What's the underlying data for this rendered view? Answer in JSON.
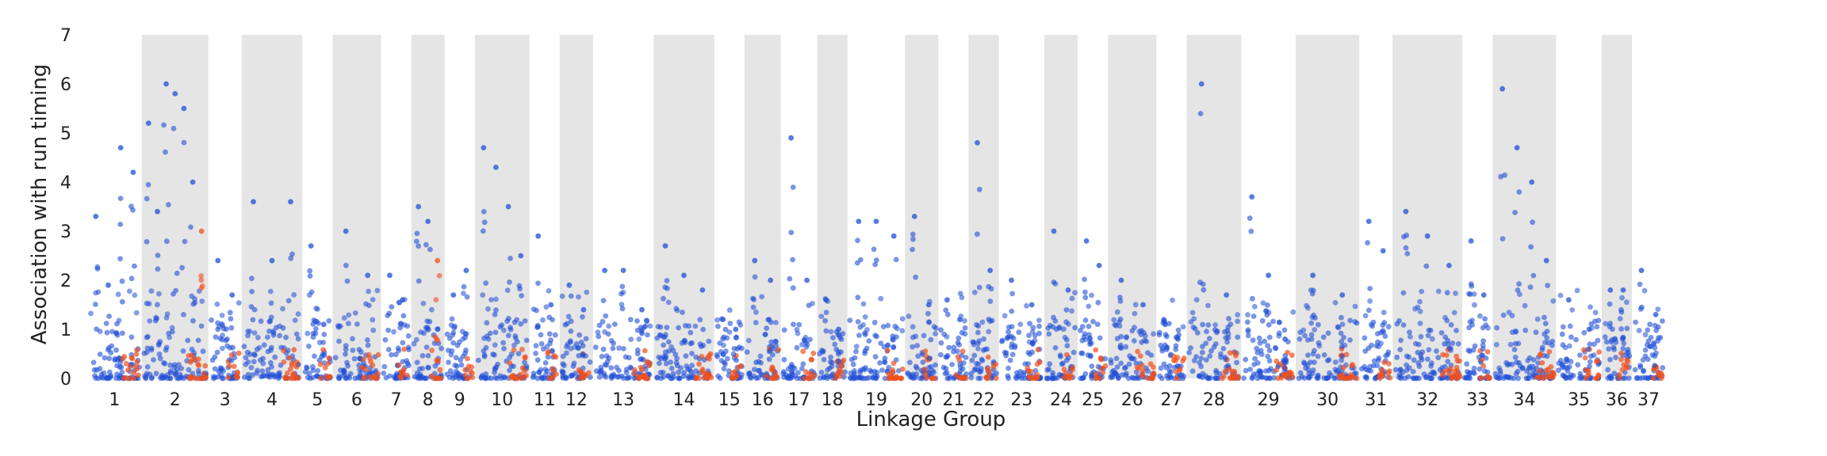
{
  "chart_data": {
    "type": "scatter",
    "title": "",
    "xlabel": "Linkage Group",
    "ylabel": "Association with run timing",
    "ylim": [
      0,
      7
    ],
    "yticks": [
      "0",
      "1",
      "2",
      "3",
      "4",
      "5",
      "6",
      "7"
    ],
    "grid": false,
    "legend": "none",
    "shading": "alternating grey bands behind even-numbered linkage groups",
    "colors": {
      "background": "#ffffff",
      "band": "#e5e5e5",
      "point_blue": "#1f4fd6",
      "point_red": "#f0501e",
      "text": "#222222"
    },
    "linkage_groups": [
      {
        "label": "1",
        "span": 1.8,
        "peaks": [
          3.3,
          1.9,
          4.7,
          4.2
        ]
      },
      {
        "label": "2",
        "span": 2.2,
        "peaks": [
          5.2,
          3.4,
          6.0,
          5.8,
          5.5,
          4.0,
          3.0
        ]
      },
      {
        "label": "3",
        "span": 1.1,
        "peaks": [
          2.4,
          1.7
        ]
      },
      {
        "label": "4",
        "span": 2.0,
        "peaks": [
          3.6,
          2.4,
          3.6
        ]
      },
      {
        "label": "5",
        "span": 1.0,
        "peaks": [
          2.7,
          1.1
        ]
      },
      {
        "label": "6",
        "span": 1.6,
        "peaks": [
          3.0,
          2.1
        ]
      },
      {
        "label": "7",
        "span": 1.0,
        "peaks": [
          2.1,
          1.6
        ]
      },
      {
        "label": "8",
        "span": 1.1,
        "peaks": [
          3.5,
          3.2,
          2.4
        ]
      },
      {
        "label": "9",
        "span": 1.0,
        "peaks": [
          1.7,
          2.2
        ]
      },
      {
        "label": "10",
        "span": 1.8,
        "peaks": [
          4.7,
          4.3,
          3.5,
          2.5
        ]
      },
      {
        "label": "11",
        "span": 1.0,
        "peaks": [
          2.9,
          1.5
        ]
      },
      {
        "label": "12",
        "span": 1.1,
        "peaks": [
          1.9,
          1.4
        ]
      },
      {
        "label": "13",
        "span": 2.0,
        "peaks": [
          2.2,
          2.2,
          1.4
        ]
      },
      {
        "label": "14",
        "span": 2.0,
        "peaks": [
          2.7,
          2.1,
          1.8
        ]
      },
      {
        "label": "15",
        "span": 1.0,
        "peaks": [
          1.2,
          1.0
        ]
      },
      {
        "label": "16",
        "span": 1.2,
        "peaks": [
          2.4,
          2.0
        ]
      },
      {
        "label": "17",
        "span": 1.2,
        "peaks": [
          4.9,
          2.0
        ]
      },
      {
        "label": "18",
        "span": 1.0,
        "peaks": [
          1.6,
          1.0
        ]
      },
      {
        "label": "19",
        "span": 1.9,
        "peaks": [
          3.2,
          3.2,
          2.9
        ]
      },
      {
        "label": "20",
        "span": 1.1,
        "peaks": [
          3.3,
          1.5
        ]
      },
      {
        "label": "21",
        "span": 1.0,
        "peaks": [
          1.6,
          1.2
        ]
      },
      {
        "label": "22",
        "span": 1.0,
        "peaks": [
          4.8,
          2.2
        ]
      },
      {
        "label": "23",
        "span": 1.5,
        "peaks": [
          2.0,
          1.5
        ]
      },
      {
        "label": "24",
        "span": 1.1,
        "peaks": [
          3.0,
          1.8
        ]
      },
      {
        "label": "25",
        "span": 1.0,
        "peaks": [
          2.8,
          2.3
        ]
      },
      {
        "label": "26",
        "span": 1.6,
        "peaks": [
          2.0,
          1.5
        ]
      },
      {
        "label": "27",
        "span": 1.0,
        "peaks": [
          1.1,
          0.8
        ]
      },
      {
        "label": "28",
        "span": 1.8,
        "peaks": [
          6.0,
          1.7
        ]
      },
      {
        "label": "29",
        "span": 1.8,
        "peaks": [
          3.7,
          2.1,
          0.8
        ]
      },
      {
        "label": "30",
        "span": 2.1,
        "peaks": [
          2.1,
          1.7
        ]
      },
      {
        "label": "31",
        "span": 1.1,
        "peaks": [
          3.2,
          2.6
        ]
      },
      {
        "label": "32",
        "span": 2.3,
        "peaks": [
          3.4,
          2.9,
          2.3
        ]
      },
      {
        "label": "33",
        "span": 1.0,
        "peaks": [
          2.8,
          1.7
        ]
      },
      {
        "label": "34",
        "span": 2.1,
        "peaks": [
          5.9,
          4.7,
          4.0,
          2.4
        ]
      },
      {
        "label": "35",
        "span": 1.5,
        "peaks": [
          1.6,
          1.0
        ]
      },
      {
        "label": "36",
        "span": 1.0,
        "peaks": [
          1.8,
          1.8
        ]
      },
      {
        "label": "37",
        "span": 1.1,
        "peaks": [
          2.2,
          1.3
        ]
      }
    ]
  }
}
